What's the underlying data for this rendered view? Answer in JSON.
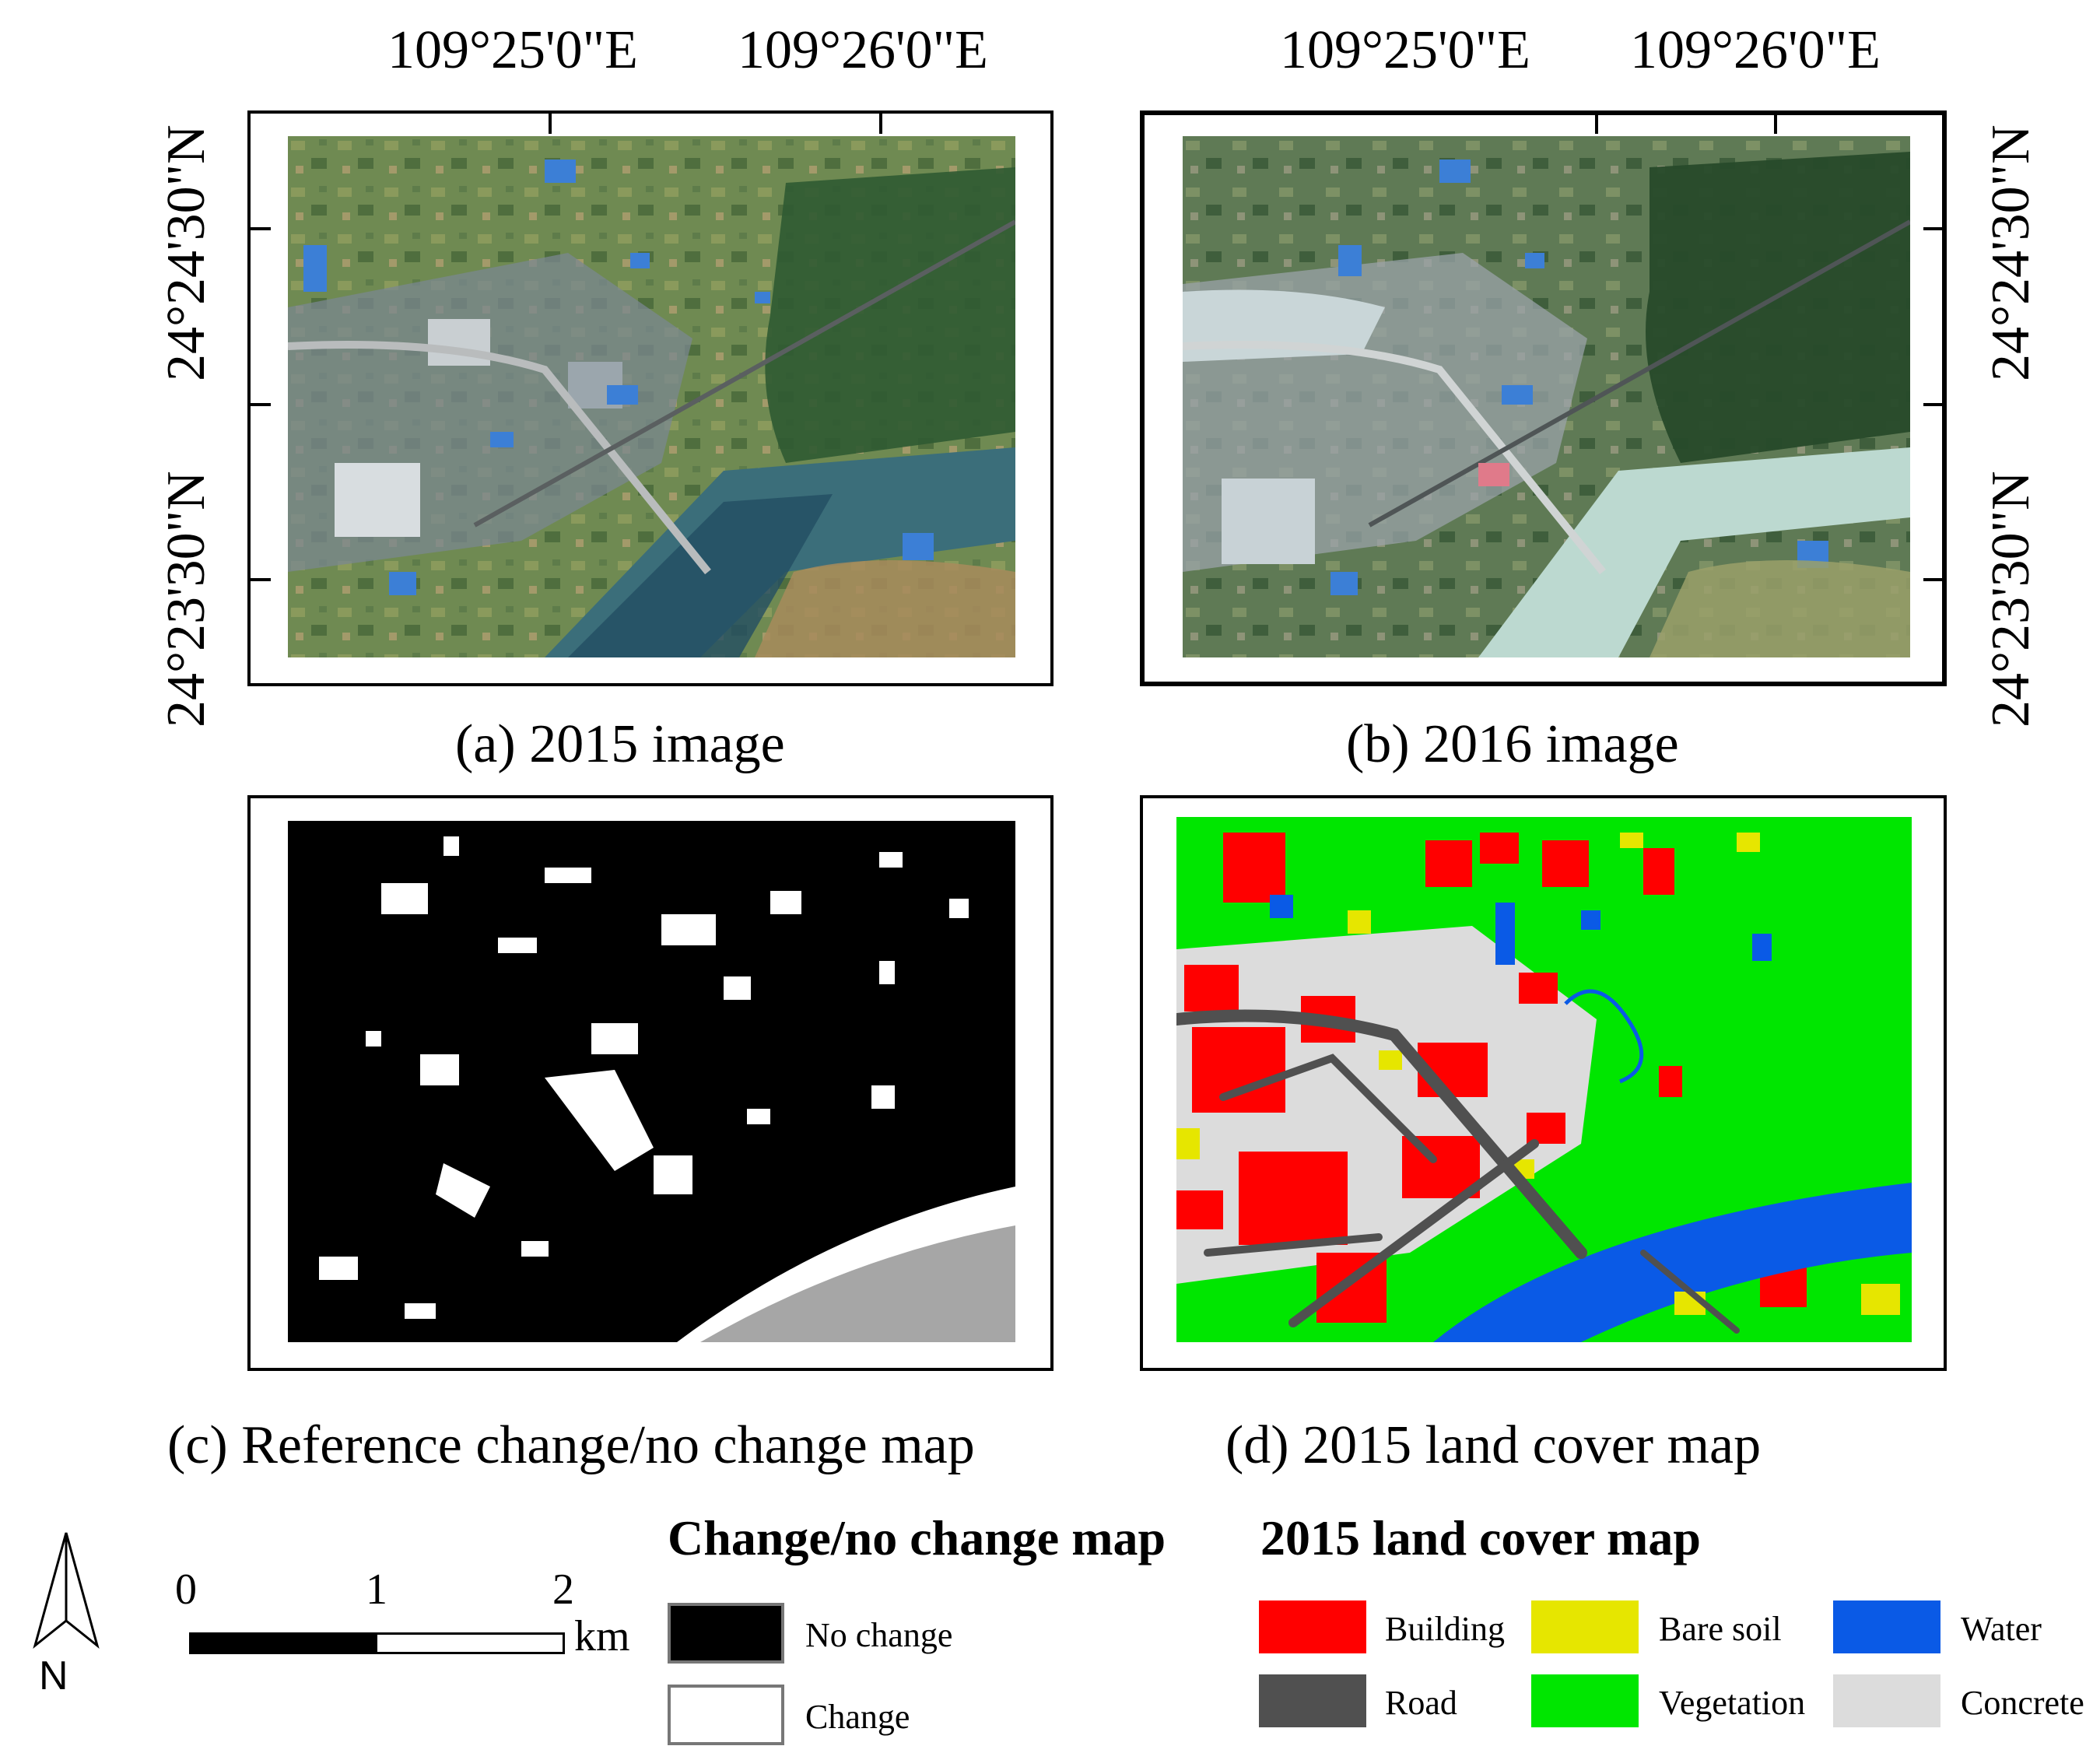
{
  "map_a": {
    "top_lon_1": "109°25'0\"E",
    "top_lon_2": "109°26'0\"E",
    "lat_1": "24°24'30\"N",
    "lat_2": "24°23'30\"N",
    "caption": "(a) 2015 image"
  },
  "map_b": {
    "top_lon_1": "109°25'0\"E",
    "top_lon_2": "109°26'0\"E",
    "lat_1": "24°24'30\"N",
    "lat_2": "24°23'30\"N",
    "caption": "(b) 2016 image"
  },
  "map_c": {
    "caption": "(c) Reference change/no change map"
  },
  "map_d": {
    "caption": "(d) 2015 land cover map"
  },
  "north_arrow": {
    "label": "N"
  },
  "scale_bar": {
    "ticks": [
      "0",
      "1",
      "2"
    ],
    "unit": "km"
  },
  "legend_change": {
    "title": "Change/no change map",
    "items": [
      {
        "label": "No change",
        "color": "#000000"
      },
      {
        "label": "Change",
        "color": "#ffffff"
      }
    ]
  },
  "legend_landcover": {
    "title": "2015 land cover map",
    "items": [
      {
        "label": "Building",
        "color": "#ff0000"
      },
      {
        "label": "Bare soil",
        "color": "#e6e600"
      },
      {
        "label": "Water",
        "color": "#0a5ae6"
      },
      {
        "label": "Road",
        "color": "#505050"
      },
      {
        "label": "Vegetation",
        "color": "#00e600"
      },
      {
        "label": "Concrete",
        "color": "#dcdcdc"
      }
    ]
  }
}
